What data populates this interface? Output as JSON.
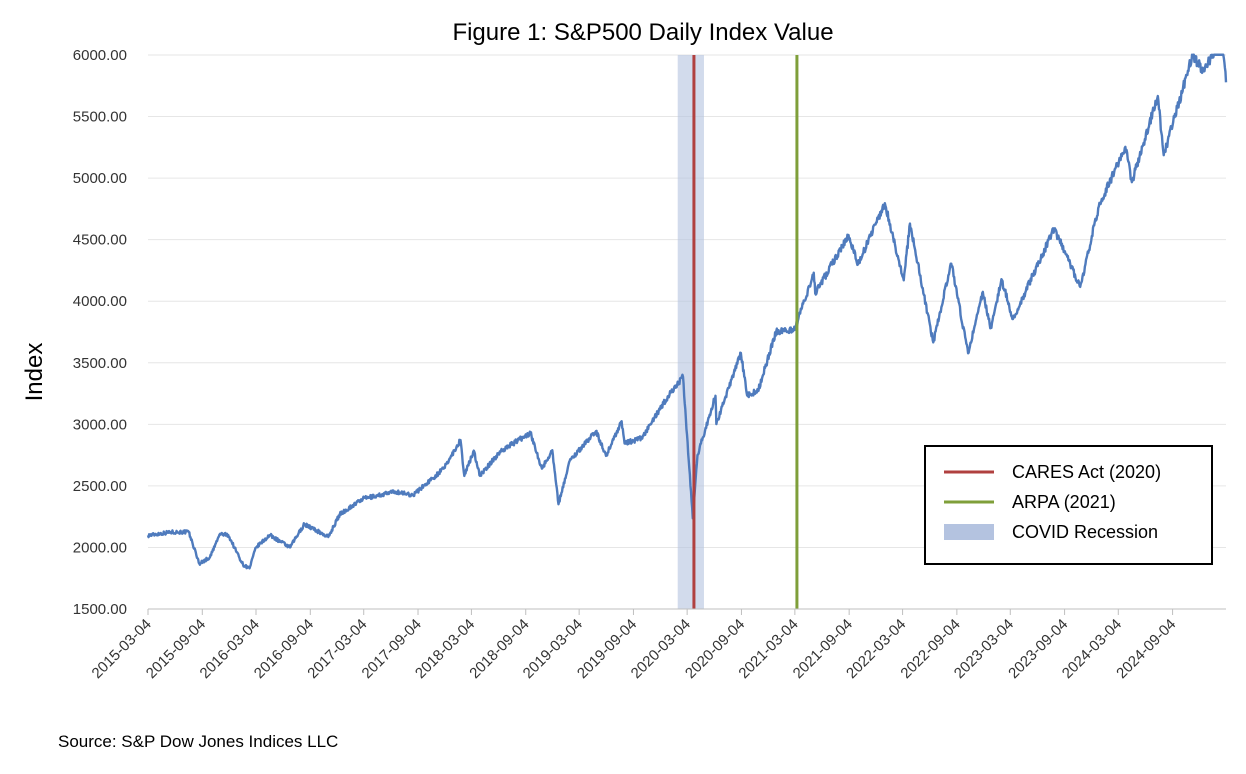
{
  "chart_data": {
    "type": "line",
    "title": "Figure 1: S&P500 Daily Index Value",
    "ylabel": "Index",
    "xlabel": "",
    "source": "Source: S&P Dow Jones Indices LLC",
    "ylim": [
      1500,
      6000
    ],
    "yticks": [
      "1500.00",
      "2000.00",
      "2500.00",
      "3000.00",
      "3500.00",
      "4000.00",
      "4500.00",
      "5000.00",
      "5500.00",
      "6000.00"
    ],
    "xlim": [
      "2015-03-04",
      "2025-03-04"
    ],
    "xticks": [
      "2015-03-04",
      "2015-09-04",
      "2016-03-04",
      "2016-09-04",
      "2017-03-04",
      "2017-09-04",
      "2018-03-04",
      "2018-09-04",
      "2019-03-04",
      "2019-09-04",
      "2020-03-04",
      "2020-09-04",
      "2021-03-04",
      "2021-09-04",
      "2022-03-04",
      "2022-09-04",
      "2023-03-04",
      "2023-09-04",
      "2024-03-04",
      "2024-09-04"
    ],
    "grid": "horizontal",
    "legend_position": "bottom-right",
    "series": [
      {
        "name": "S&P500",
        "color": "#4f7bbd",
        "points": [
          [
            "2015-03-04",
            2098
          ],
          [
            "2015-05-20",
            2125
          ],
          [
            "2015-07-20",
            2125
          ],
          [
            "2015-08-25",
            1868
          ],
          [
            "2015-09-30",
            1920
          ],
          [
            "2015-11-03",
            2110
          ],
          [
            "2015-12-01",
            2100
          ],
          [
            "2016-01-20",
            1860
          ],
          [
            "2016-02-11",
            1830
          ],
          [
            "2016-03-04",
            2000
          ],
          [
            "2016-04-20",
            2100
          ],
          [
            "2016-06-27",
            2000
          ],
          [
            "2016-08-15",
            2190
          ],
          [
            "2016-11-04",
            2085
          ],
          [
            "2016-12-13",
            2270
          ],
          [
            "2017-03-01",
            2395
          ],
          [
            "2017-06-19",
            2453
          ],
          [
            "2017-08-18",
            2425
          ],
          [
            "2017-11-30",
            2640
          ],
          [
            "2018-01-26",
            2872
          ],
          [
            "2018-02-08",
            2581
          ],
          [
            "2018-03-12",
            2786
          ],
          [
            "2018-04-02",
            2582
          ],
          [
            "2018-06-12",
            2785
          ],
          [
            "2018-09-20",
            2930
          ],
          [
            "2018-10-29",
            2640
          ],
          [
            "2018-12-03",
            2790
          ],
          [
            "2018-12-24",
            2351
          ],
          [
            "2019-01-31",
            2704
          ],
          [
            "2019-04-30",
            2945
          ],
          [
            "2019-06-03",
            2744
          ],
          [
            "2019-07-26",
            3025
          ],
          [
            "2019-08-05",
            2844
          ],
          [
            "2019-10-02",
            2887
          ],
          [
            "2019-12-31",
            3230
          ],
          [
            "2020-02-19",
            3386
          ],
          [
            "2020-03-23",
            2237
          ],
          [
            "2020-04-08",
            2749
          ],
          [
            "2020-06-08",
            3232
          ],
          [
            "2020-06-11",
            3002
          ],
          [
            "2020-09-02",
            3580
          ],
          [
            "2020-09-23",
            3237
          ],
          [
            "2020-10-30",
            3270
          ],
          [
            "2020-12-31",
            3756
          ],
          [
            "2021-03-04",
            3768
          ],
          [
            "2021-05-07",
            4232
          ],
          [
            "2021-05-12",
            4063
          ],
          [
            "2021-09-02",
            4537
          ],
          [
            "2021-10-04",
            4300
          ],
          [
            "2022-01-03",
            4796
          ],
          [
            "2022-03-08",
            4170
          ],
          [
            "2022-03-29",
            4631
          ],
          [
            "2022-06-16",
            3666
          ],
          [
            "2022-08-16",
            4305
          ],
          [
            "2022-10-12",
            3577
          ],
          [
            "2022-12-01",
            4076
          ],
          [
            "2022-12-28",
            3783
          ],
          [
            "2023-02-02",
            4179
          ],
          [
            "2023-03-13",
            3855
          ],
          [
            "2023-07-31",
            4589
          ],
          [
            "2023-10-27",
            4117
          ],
          [
            "2023-12-29",
            4770
          ],
          [
            "2024-03-28",
            5254
          ],
          [
            "2024-04-19",
            4967
          ],
          [
            "2024-07-16",
            5667
          ],
          [
            "2024-08-05",
            5186
          ],
          [
            "2024-11-11",
            6001
          ],
          [
            "2024-12-19",
            5867
          ],
          [
            "2025-02-19",
            6144
          ],
          [
            "2025-03-04",
            5778
          ]
        ]
      }
    ],
    "events": [
      {
        "name": "CARES Act (2020)",
        "date": "2020-03-27",
        "color": "#b0403f"
      },
      {
        "name": "ARPA (2021)",
        "date": "2021-03-11",
        "color": "#7f9f3a"
      }
    ],
    "shaded": [
      {
        "name": "COVID Recession",
        "start": "2020-02-01",
        "end": "2020-04-30",
        "color": "#b4c3e0"
      }
    ]
  }
}
